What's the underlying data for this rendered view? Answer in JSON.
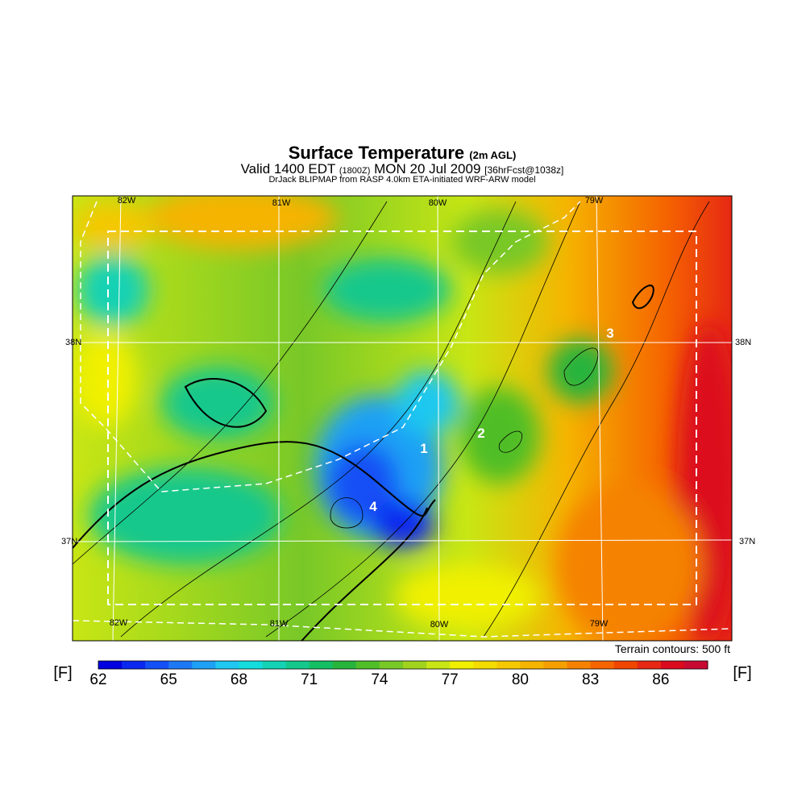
{
  "header": {
    "title": "Surface Temperature",
    "title_note": "(2m AGL)",
    "valid": "Valid 1400 EDT",
    "valid_z": "(1800Z)",
    "date": "MON 20 Jul 2009",
    "forecast": "[36hrFcst@1038z]",
    "source": "DrJack BLIPMAP from RASP 4.0km ETA-initiated WRF-ARW model"
  },
  "map": {
    "lon_labels": [
      "82W",
      "81W",
      "80W",
      "79W"
    ],
    "lat_labels": [
      "38N",
      "37N"
    ],
    "site_labels": [
      "1",
      "2",
      "3",
      "4"
    ],
    "terrain_note": "Terrain contours: 500 ft"
  },
  "colorbar": {
    "unit": "[F]",
    "ticks": [
      62,
      65,
      68,
      71,
      74,
      77,
      80,
      83,
      86
    ],
    "colors": [
      "#0000e0",
      "#0a28f0",
      "#1450f5",
      "#1e78f5",
      "#1ea0f5",
      "#1ec8f0",
      "#14dcdc",
      "#14d2b4",
      "#14c88c",
      "#14be64",
      "#28b43c",
      "#50be28",
      "#78c828",
      "#a0d21e",
      "#c8e614",
      "#f0f000",
      "#f5dc00",
      "#f5c800",
      "#f5b400",
      "#f5a000",
      "#f58200",
      "#f56400",
      "#f04600",
      "#e62814",
      "#dc0a1e",
      "#c80a32"
    ]
  }
}
